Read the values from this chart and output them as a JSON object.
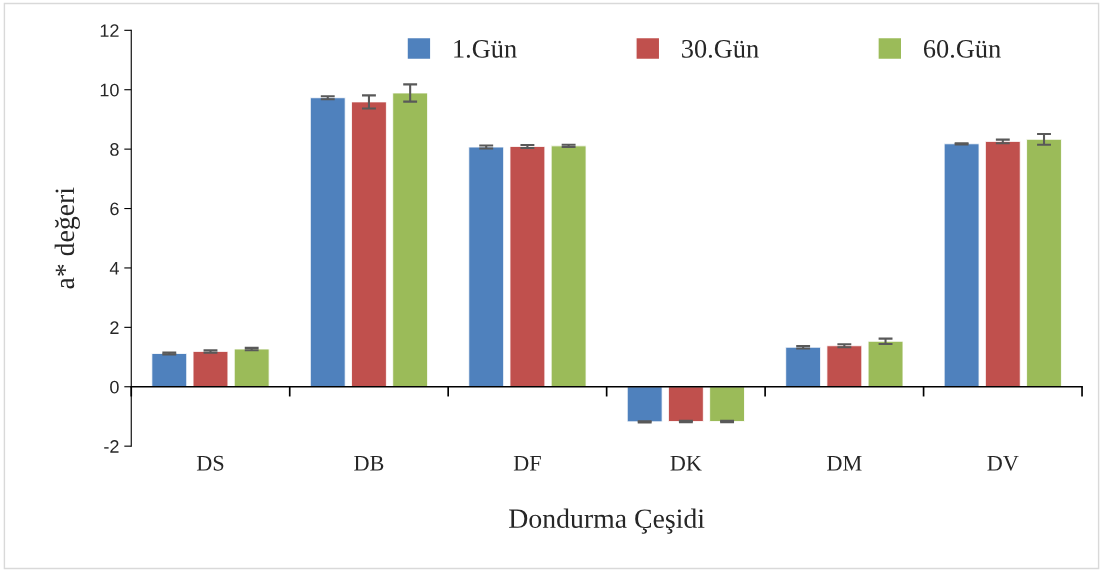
{
  "chart_data": {
    "type": "bar",
    "xlabel": "Dondurma Çeşidi",
    "ylabel": "a* değeri",
    "categories": [
      "DS",
      "DB",
      "DF",
      "DK",
      "DM",
      "DV"
    ],
    "series": [
      {
        "name": "1.Gün",
        "color": "#4f81bd",
        "values": [
          1.12,
          9.73,
          8.07,
          -1.18,
          1.33,
          8.18
        ],
        "errors": [
          0.03,
          0.05,
          0.05,
          0.02,
          0.04,
          0.02
        ]
      },
      {
        "name": "30.Gün",
        "color": "#c0504d",
        "values": [
          1.19,
          9.59,
          8.09,
          -1.17,
          1.38,
          8.26
        ],
        "errors": [
          0.04,
          0.22,
          0.05,
          0.02,
          0.05,
          0.06
        ]
      },
      {
        "name": "60.Gün",
        "color": "#9bbb59",
        "values": [
          1.27,
          9.89,
          8.11,
          -1.17,
          1.53,
          8.33
        ],
        "errors": [
          0.04,
          0.29,
          0.04,
          0.02,
          0.09,
          0.18
        ]
      }
    ],
    "ylim": [
      -2,
      12
    ],
    "yticks": [
      {
        "value": -2,
        "label": "-2"
      },
      0,
      2,
      4,
      6,
      8,
      10,
      12
    ],
    "legend": "top right"
  }
}
